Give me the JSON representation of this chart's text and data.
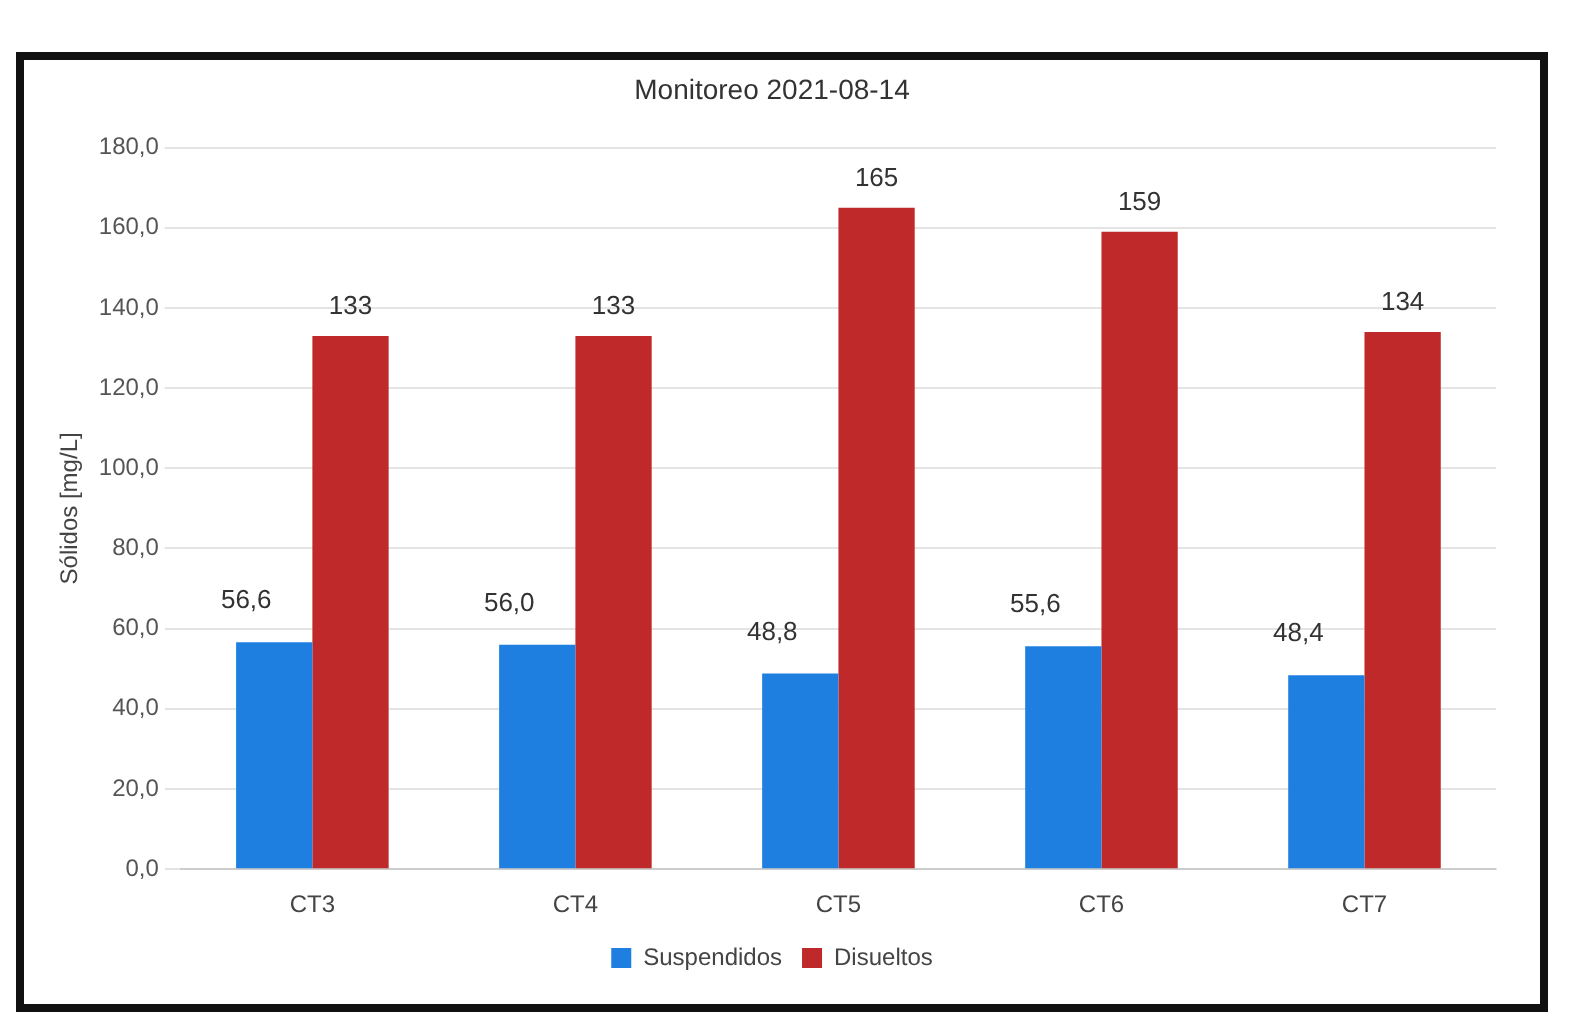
{
  "chart_data": {
    "type": "bar",
    "title": "Monitoreo 2021-08-14",
    "ylabel": "Sólidos [mg/L]",
    "categories": [
      "CT3",
      "CT4",
      "CT5",
      "CT6",
      "CT7"
    ],
    "series": [
      {
        "name": "Suspendidos",
        "color": "#1f7fe0",
        "values": [
          56.6,
          56.0,
          48.8,
          55.6,
          48.4
        ],
        "value_labels": [
          "56,6",
          "56,0",
          "48,8",
          "55,6",
          "48,4"
        ]
      },
      {
        "name": "Disueltos",
        "color": "#c0292a",
        "values": [
          133,
          133,
          165,
          159,
          134
        ],
        "value_labels": [
          "133",
          "133",
          "165",
          "159",
          "134"
        ]
      }
    ],
    "ylim": [
      0,
      180
    ],
    "yticks": [
      {
        "value": 0,
        "label": "0,0"
      },
      {
        "value": 20,
        "label": "20,0"
      },
      {
        "value": 40,
        "label": "40,0"
      },
      {
        "value": 60,
        "label": "60,0"
      },
      {
        "value": 80,
        "label": "80,0"
      },
      {
        "value": 100,
        "label": "100,0"
      },
      {
        "value": 120,
        "label": "120,0"
      },
      {
        "value": 140,
        "label": "140,0"
      },
      {
        "value": 160,
        "label": "160,0"
      },
      {
        "value": 180,
        "label": "180,0"
      }
    ],
    "grid": "y",
    "legend": "bottom"
  }
}
